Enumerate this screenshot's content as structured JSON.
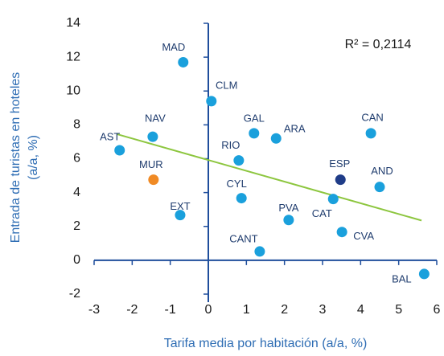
{
  "chart_data": {
    "type": "scatter",
    "xlabel": "Tarifa media por habitación (a/a, %)",
    "ylabel": [
      "Entrada de turistas en hoteles",
      "(a/a, %)"
    ],
    "annotation": "R² = 0,2114",
    "xlim": [
      -3,
      6
    ],
    "xticks": [
      -3,
      -2,
      -1,
      0,
      1,
      2,
      3,
      4,
      5,
      6
    ],
    "ylim": [
      -2,
      14
    ],
    "yticks": [
      -2,
      0,
      2,
      4,
      6,
      8,
      10,
      12,
      14
    ],
    "labels": [
      "MAD",
      "CLM",
      "NAV",
      "AST",
      "GAL",
      "ARA",
      "CAN",
      "RIO",
      "ESP",
      "AND",
      "MUR",
      "CYL",
      "CAT",
      "EXT",
      "PVA",
      "CVA",
      "CANT",
      "BAL"
    ],
    "x": [
      -0.66,
      0.08,
      -1.46,
      -2.33,
      1.2,
      1.78,
      4.27,
      0.8,
      3.47,
      4.5,
      -1.44,
      0.87,
      3.28,
      -0.74,
      2.11,
      3.51,
      1.35,
      5.67
    ],
    "y": [
      11.7,
      9.4,
      7.3,
      6.5,
      7.5,
      7.2,
      7.5,
      5.9,
      4.76,
      4.33,
      4.76,
      3.67,
      3.62,
      2.67,
      2.38,
      1.67,
      0.52,
      -0.81
    ],
    "colors": [
      "#1aa0dc",
      "#1aa0dc",
      "#1aa0dc",
      "#1aa0dc",
      "#1aa0dc",
      "#1aa0dc",
      "#1aa0dc",
      "#1aa0dc",
      "#1f3c88",
      "#1aa0dc",
      "#f08a24",
      "#1aa0dc",
      "#1aa0dc",
      "#1aa0dc",
      "#1aa0dc",
      "#1aa0dc",
      "#1aa0dc",
      "#1aa0dc"
    ],
    "trendline": {
      "color": "#8dc63f",
      "x": [
        -2.4,
        5.6
      ],
      "y": [
        7.45,
        2.35
      ]
    },
    "axis_color": "#1f4e9c"
  }
}
